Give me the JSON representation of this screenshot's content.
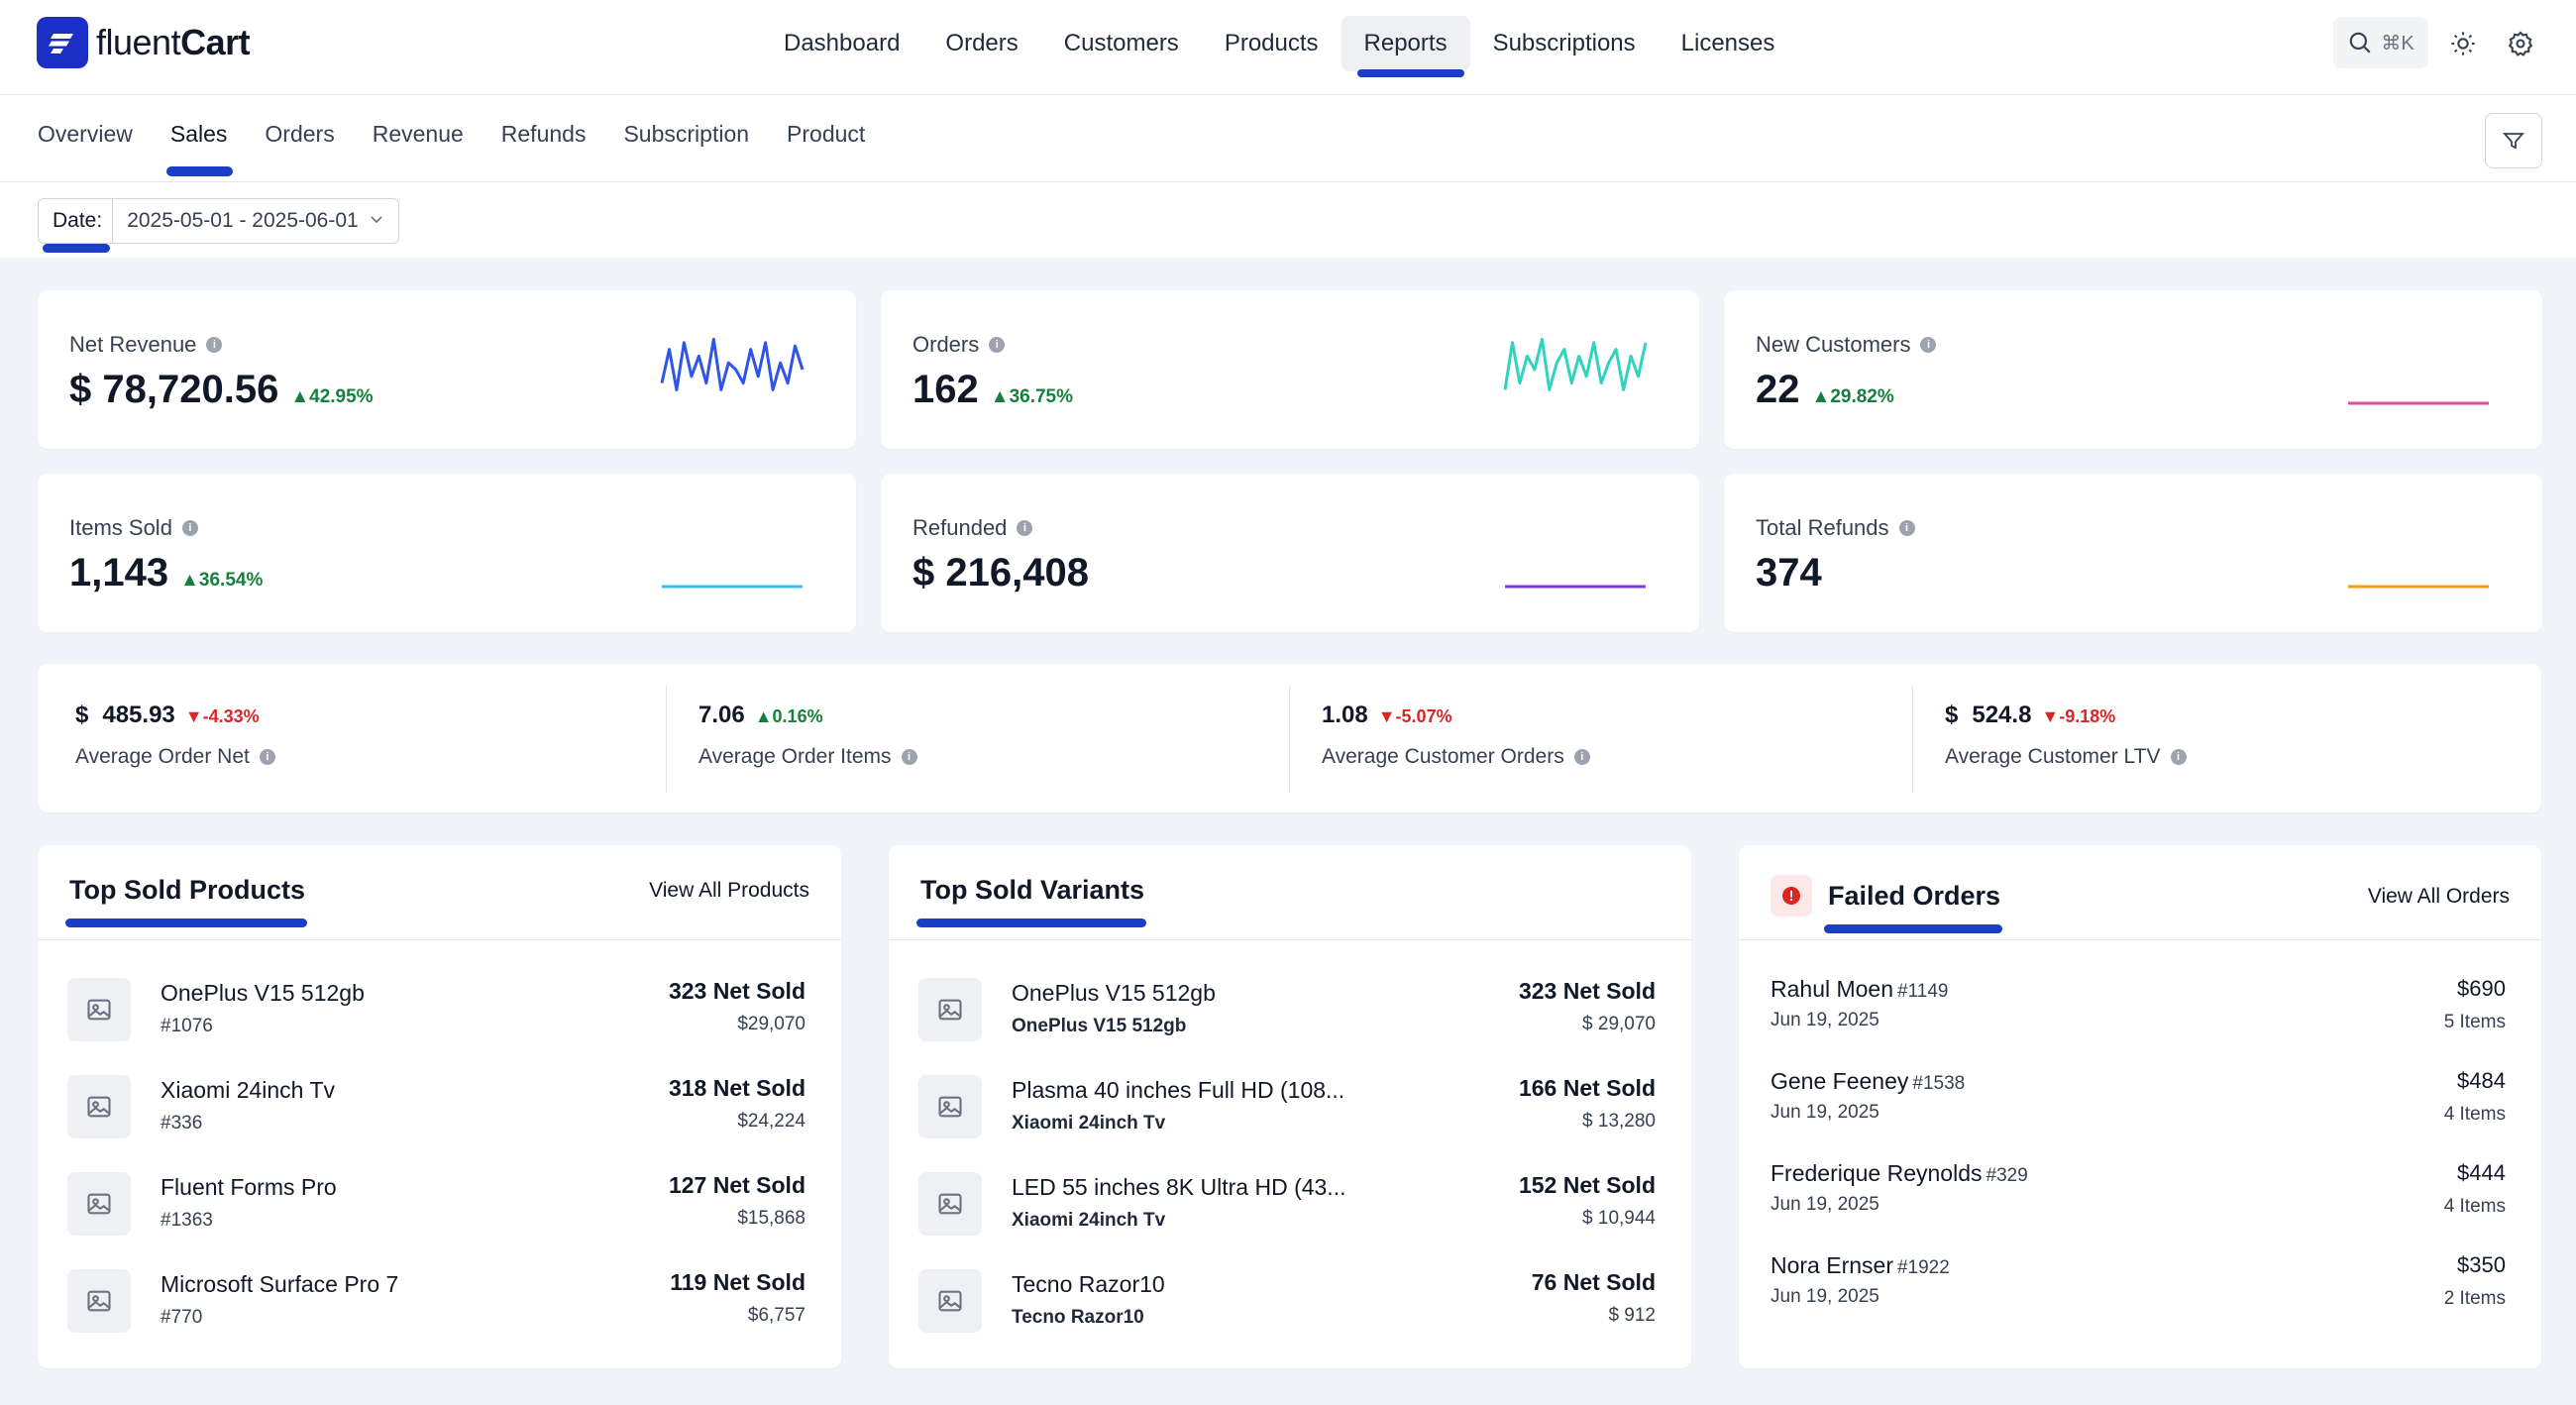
{
  "app": {
    "logo_light": "fluent",
    "logo_bold": "Cart"
  },
  "main_nav": [
    "Dashboard",
    "Orders",
    "Customers",
    "Products",
    "Reports",
    "Subscriptions",
    "Licenses"
  ],
  "main_nav_active": "Reports",
  "search": {
    "shortcut": "⌘K"
  },
  "sub_nav": [
    "Overview",
    "Sales",
    "Orders",
    "Revenue",
    "Refunds",
    "Subscription",
    "Product"
  ],
  "sub_nav_active": "Sales",
  "date_filter": {
    "label": "Date:",
    "value": "2025-05-01 - 2025-06-01"
  },
  "stats": [
    {
      "label": "Net Revenue",
      "value": "$ 78,720.56",
      "delta": "42.95%",
      "trend": "up",
      "spark_color": "#2f54eb",
      "spark": [
        0.3,
        0.8,
        0.2,
        0.9,
        0.4,
        0.7,
        0.3,
        0.95,
        0.2,
        0.6,
        0.5,
        0.3,
        0.8,
        0.4,
        0.9,
        0.2,
        0.6,
        0.3,
        0.85,
        0.5
      ]
    },
    {
      "label": "Orders",
      "value": "162",
      "delta": "36.75%",
      "trend": "up",
      "spark_color": "#2dd4bf",
      "spark": [
        0.2,
        0.9,
        0.3,
        0.7,
        0.5,
        0.95,
        0.2,
        0.6,
        0.8,
        0.3,
        0.7,
        0.4,
        0.9,
        0.3,
        0.6,
        0.8,
        0.2,
        0.7,
        0.4,
        0.9
      ]
    },
    {
      "label": "New Customers",
      "value": "22",
      "delta": "29.82%",
      "trend": "up",
      "spark_color": "#ec4899",
      "spark": [
        0,
        0,
        0,
        0,
        0,
        0,
        0,
        0,
        0,
        0
      ]
    },
    {
      "label": "Items Sold",
      "value": "1,143",
      "delta": "36.54%",
      "trend": "up",
      "spark_color": "#38bdf8",
      "spark": [
        0,
        0,
        0,
        0,
        0,
        0,
        0,
        0,
        0,
        0
      ]
    },
    {
      "label": "Refunded",
      "value": "$ 216,408",
      "delta": "",
      "trend": "none",
      "spark_color": "#7c3aed",
      "spark": [
        0,
        0,
        0,
        0,
        0,
        0,
        0,
        0,
        0,
        0
      ]
    },
    {
      "label": "Total Refunds",
      "value": "374",
      "delta": "",
      "trend": "none",
      "spark_color": "#f59e0b",
      "spark": [
        0,
        0,
        0,
        0,
        0,
        0,
        0,
        0,
        0,
        0
      ]
    }
  ],
  "averages": [
    {
      "currency": "$",
      "value": "485.93",
      "delta": "-4.33%",
      "trend": "down",
      "label": "Average Order Net"
    },
    {
      "currency": "",
      "value": "7.06",
      "delta": "0.16%",
      "trend": "up",
      "label": "Average Order Items"
    },
    {
      "currency": "",
      "value": "1.08",
      "delta": "-5.07%",
      "trend": "down",
      "label": "Average Customer Orders"
    },
    {
      "currency": "$",
      "value": "524.8",
      "delta": "-9.18%",
      "trend": "down",
      "label": "Average Customer LTV"
    }
  ],
  "top_products": {
    "title": "Top Sold Products",
    "link": "View All Products",
    "rows": [
      {
        "name": "OnePlus V15 512gb",
        "sub": "#1076",
        "sold": "323 Net Sold",
        "amount": "$29,070"
      },
      {
        "name": "Xiaomi 24inch Tv",
        "sub": "#336",
        "sold": "318 Net Sold",
        "amount": "$24,224"
      },
      {
        "name": "Fluent Forms Pro",
        "sub": "#1363",
        "sold": "127 Net Sold",
        "amount": "$15,868"
      },
      {
        "name": "Microsoft Surface Pro 7",
        "sub": "#770",
        "sold": "119 Net Sold",
        "amount": "$6,757"
      }
    ]
  },
  "top_variants": {
    "title": "Top Sold Variants",
    "rows": [
      {
        "name": "OnePlus V15 512gb",
        "sub": "OnePlus V15 512gb",
        "sold": "323 Net Sold",
        "amount": "$ 29,070"
      },
      {
        "name": "Plasma 40 inches Full HD (108...",
        "sub": "Xiaomi 24inch Tv",
        "sold": "166 Net Sold",
        "amount": "$ 13,280"
      },
      {
        "name": "LED 55 inches 8K Ultra HD (43...",
        "sub": "Xiaomi 24inch Tv",
        "sold": "152 Net Sold",
        "amount": "$ 10,944"
      },
      {
        "name": "Tecno Razor10",
        "sub": "Tecno Razor10",
        "sold": "76 Net Sold",
        "amount": "$ 912"
      }
    ]
  },
  "failed_orders": {
    "title": "Failed Orders",
    "link": "View All Orders",
    "rows": [
      {
        "name": "Rahul Moen",
        "num": "#1149",
        "date": "Jun 19, 2025",
        "amount": "$690",
        "items": "5 Items"
      },
      {
        "name": "Gene Feeney",
        "num": "#1538",
        "date": "Jun 19, 2025",
        "amount": "$484",
        "items": "4 Items"
      },
      {
        "name": "Frederique Reynolds",
        "num": "#329",
        "date": "Jun 19, 2025",
        "amount": "$444",
        "items": "4 Items"
      },
      {
        "name": "Nora Ernser",
        "num": "#1922",
        "date": "Jun 19, 2025",
        "amount": "$350",
        "items": "2 Items"
      }
    ]
  },
  "colors": {
    "accent": "#1b3fc4",
    "up": "#15803d",
    "down": "#dc2626"
  }
}
